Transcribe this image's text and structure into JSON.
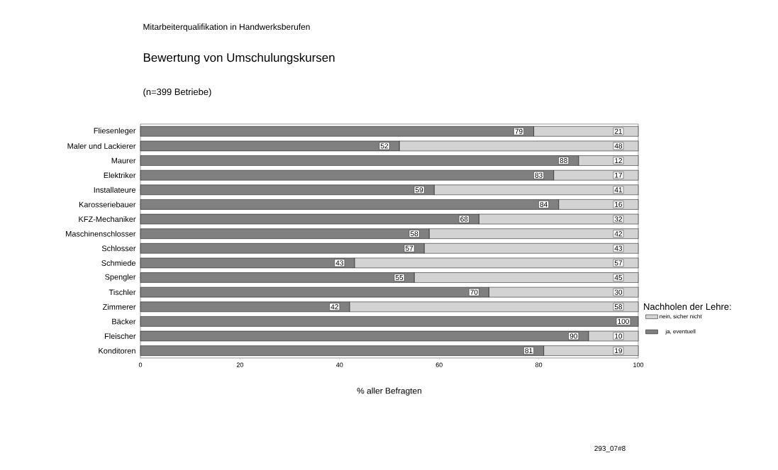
{
  "chart_data": {
    "type": "bar",
    "orientation": "horizontal",
    "stacked": true,
    "title": "Mitarbeiterqualifikation in Handwerksberufen",
    "subtitle": "Bewertung von Umschulungskursen",
    "annotations": [
      "(n=399 Betriebe)",
      "293_07#8"
    ],
    "xlabel": "% aller Befragten",
    "legend_title": "Nachholen der Lehre:",
    "legend": "right",
    "categories": [
      "Fliesenleger",
      "Maler und Lackierer",
      "Maurer",
      "Elektriker",
      "Installateure",
      "Karosseriebauer",
      "KFZ-Mechaniker",
      "Maschinenschlosser",
      "Schlosser",
      "Schmiede",
      "Spengler",
      "Tischler",
      "Zimmerer",
      "Bäcker",
      "Fleischer",
      "Konditoren"
    ],
    "xlim": [
      0,
      100
    ],
    "xticks": [
      0,
      20,
      40,
      60,
      80,
      100
    ],
    "series": [
      {
        "name": "ja, eventuell",
        "color": "#808080",
        "values": [
          79,
          52,
          88,
          83,
          59,
          84,
          68,
          58,
          57,
          43,
          55,
          70,
          42,
          100,
          90,
          81
        ],
        "value_labels": [
          "79",
          "52",
          "88",
          "83",
          "59",
          "84",
          "68",
          "58",
          "57",
          "43",
          "55",
          "70",
          "42",
          "100",
          "90",
          "81"
        ]
      },
      {
        "name": "nein, sicher nicht",
        "color": "#d3d3d3",
        "values": [
          21,
          48,
          12,
          17,
          41,
          16,
          32,
          42,
          43,
          57,
          45,
          30,
          58,
          0,
          10,
          19
        ],
        "value_labels": [
          "21",
          "48",
          "12",
          "17",
          "41",
          "16",
          "32",
          "42",
          "43",
          "57",
          "45",
          "30",
          "58",
          null,
          "10",
          "19"
        ]
      }
    ]
  }
}
